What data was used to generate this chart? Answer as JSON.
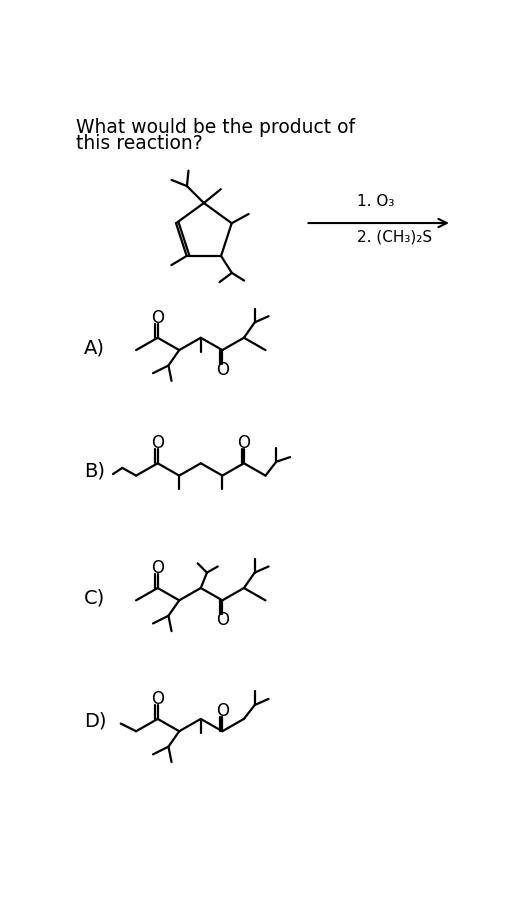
{
  "bg_color": "#ffffff",
  "text_color": "#000000",
  "title_line1": "What would be the product of",
  "title_line2": "this reaction?",
  "reagent1": "1. O₃",
  "reagent2": "2. (CH₃)₂S",
  "options": [
    "A)",
    "B)",
    "C)",
    "D)"
  ]
}
